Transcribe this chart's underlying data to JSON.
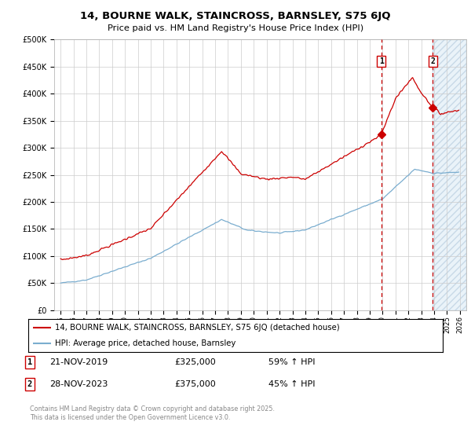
{
  "title": "14, BOURNE WALK, STAINCROSS, BARNSLEY, S75 6JQ",
  "subtitle": "Price paid vs. HM Land Registry's House Price Index (HPI)",
  "legend_label_red": "14, BOURNE WALK, STAINCROSS, BARNSLEY, S75 6JQ (detached house)",
  "legend_label_blue": "HPI: Average price, detached house, Barnsley",
  "transaction1_date": "21-NOV-2019",
  "transaction1_price": "£325,000",
  "transaction1_hpi": "59% ↑ HPI",
  "transaction2_date": "28-NOV-2023",
  "transaction2_price": "£375,000",
  "transaction2_hpi": "45% ↑ HPI",
  "copyright_text": "Contains HM Land Registry data © Crown copyright and database right 2025.\nThis data is licensed under the Open Government Licence v3.0.",
  "vline1_x": 2019.9,
  "vline2_x": 2023.9,
  "ylim": [
    0,
    500000
  ],
  "xlim": [
    1994.5,
    2026.5
  ],
  "red_color": "#cc0000",
  "blue_color": "#7aadcf",
  "vline_color": "#cc0000",
  "bg_color": "#ffffff",
  "grid_color": "#cccccc",
  "shade_color": "#daeaf5"
}
